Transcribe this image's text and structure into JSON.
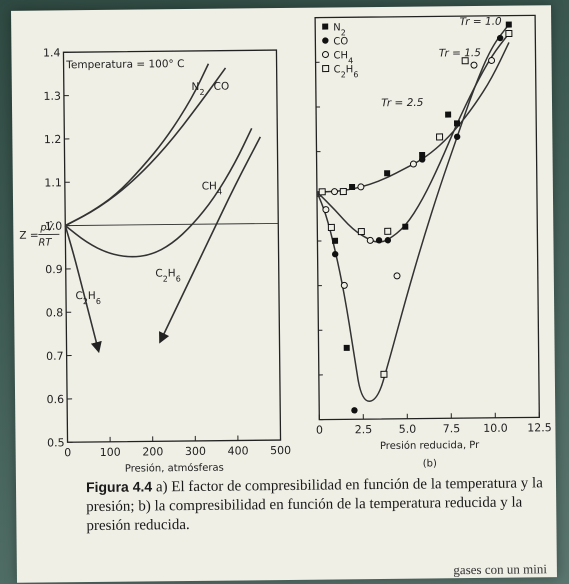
{
  "chart_data": [
    {
      "panel": "(a)",
      "type": "line",
      "title": "Temperatura = 100° C",
      "xlabel": "Presión, atmósferas",
      "ylabel": "Z = pV̂/RT",
      "xlim": [
        0,
        500
      ],
      "ylim": [
        0.5,
        1.4
      ],
      "xticks": [
        "0",
        "100",
        "200",
        "300",
        "400",
        "500"
      ],
      "yticks": [
        "0.5",
        "0.6",
        "0.7",
        "0.8",
        "0.9",
        "1.0",
        "1.1",
        "1.2",
        "1.3",
        "1.4"
      ],
      "ytick_values": [
        0.5,
        0.6,
        0.7,
        0.8,
        0.9,
        1.0,
        1.1,
        1.2,
        1.3,
        1.4
      ],
      "xtick_values": [
        0,
        100,
        200,
        300,
        400,
        500
      ],
      "reference_line_y": 1.0,
      "series": [
        {
          "name": "N2",
          "x": [
            0,
            60,
            120,
            180,
            240,
            300,
            340
          ],
          "y": [
            1.0,
            1.03,
            1.07,
            1.13,
            1.2,
            1.29,
            1.37
          ]
        },
        {
          "name": "CO",
          "x": [
            0,
            80,
            160,
            240,
            320,
            380
          ],
          "y": [
            1.0,
            1.04,
            1.1,
            1.18,
            1.28,
            1.36
          ]
        },
        {
          "name": "CH4",
          "x": [
            0,
            50,
            100,
            150,
            200,
            250,
            300,
            350,
            400,
            440
          ],
          "y": [
            1.0,
            0.96,
            0.935,
            0.925,
            0.93,
            0.955,
            1.0,
            1.06,
            1.14,
            1.22
          ]
        },
        {
          "name": "C2H6",
          "x": [
            0,
            20,
            40,
            60,
            75
          ],
          "y": [
            1.0,
            0.93,
            0.85,
            0.77,
            0.71
          ],
          "arrow": true
        },
        {
          "name": "C2H6",
          "x": [
            460,
            400,
            340,
            280,
            220
          ],
          "y": [
            1.2,
            1.09,
            0.97,
            0.85,
            0.73
          ],
          "arrow": true
        }
      ],
      "annotations": [
        {
          "text": "N2",
          "x": 315,
          "y": 1.31
        },
        {
          "text": "CO",
          "x": 370,
          "y": 1.31
        },
        {
          "text": "CH4",
          "x": 345,
          "y": 1.08
        },
        {
          "text": "C2H6",
          "x": 52,
          "y": 0.83
        },
        {
          "text": "C2H6",
          "x": 240,
          "y": 0.88
        }
      ]
    },
    {
      "panel": "(b)",
      "type": "scatter",
      "xlabel": "Presión reducida, Pr",
      "xlim": [
        0,
        12.5
      ],
      "ylim": [
        0.5,
        1.4
      ],
      "xticks": [
        "0",
        "2.5",
        "5.0",
        "7.5",
        "10.0",
        "12.5"
      ],
      "xtick_values": [
        0,
        2.5,
        5.0,
        7.5,
        10.0,
        12.5
      ],
      "legend": {
        "placement": "top-left",
        "entries": [
          "N2",
          "CO",
          "CH4",
          "C2H6"
        ]
      },
      "curves": [
        {
          "label": "Tr = 2.5",
          "x": [
            0,
            1,
            2,
            3,
            4,
            5,
            6,
            7,
            8,
            9,
            10,
            11
          ],
          "y": [
            1.01,
            1.01,
            1.015,
            1.025,
            1.04,
            1.06,
            1.08,
            1.11,
            1.15,
            1.2,
            1.26,
            1.34
          ]
        },
        {
          "label": "Tr = 1.5",
          "x": [
            0,
            1,
            2,
            3,
            3.5,
            4,
            5,
            6,
            7,
            8,
            9,
            10,
            11
          ],
          "y": [
            1.01,
            0.97,
            0.925,
            0.9,
            0.895,
            0.9,
            0.93,
            0.99,
            1.07,
            1.16,
            1.24,
            1.31,
            1.36
          ]
        },
        {
          "label": "Tr = 1.0",
          "x": [
            0,
            0.5,
            1,
            1.5,
            2,
            2.4,
            3.3,
            4,
            5,
            6,
            7,
            8,
            9,
            10,
            11
          ],
          "y": [
            1.01,
            0.96,
            0.88,
            0.78,
            0.65,
            0.54,
            0.54,
            0.63,
            0.77,
            0.9,
            1.02,
            1.13,
            1.24,
            1.33,
            1.38
          ]
        }
      ],
      "points": [
        {
          "series": "N2",
          "x": 2.0,
          "y": 1.02
        },
        {
          "series": "N2",
          "x": 4.0,
          "y": 1.05
        },
        {
          "series": "N2",
          "x": 6.0,
          "y": 1.09
        },
        {
          "series": "N2",
          "x": 8.0,
          "y": 1.16
        },
        {
          "series": "N2",
          "x": 11.0,
          "y": 1.38
        },
        {
          "series": "N2",
          "x": 5.0,
          "y": 0.93
        },
        {
          "series": "N2",
          "x": 7.5,
          "y": 1.18
        },
        {
          "series": "N2",
          "x": 1.0,
          "y": 0.9
        },
        {
          "series": "N2",
          "x": 1.6,
          "y": 0.66
        },
        {
          "series": "CO",
          "x": 1.0,
          "y": 0.87
        },
        {
          "series": "CO",
          "x": 2.0,
          "y": 0.52
        },
        {
          "series": "CO",
          "x": 4.0,
          "y": 0.9
        },
        {
          "series": "CO",
          "x": 6.0,
          "y": 1.08
        },
        {
          "series": "CO",
          "x": 7.0,
          "y": 1.13
        },
        {
          "series": "CO",
          "x": 8.0,
          "y": 1.13
        },
        {
          "series": "CO",
          "x": 10.5,
          "y": 1.35
        },
        {
          "series": "CO",
          "x": 3.5,
          "y": 0.9
        },
        {
          "series": "CH4",
          "x": 0.5,
          "y": 0.97
        },
        {
          "series": "CH4",
          "x": 1.0,
          "y": 1.01
        },
        {
          "series": "CH4",
          "x": 2.5,
          "y": 1.02
        },
        {
          "series": "CH4",
          "x": 3.0,
          "y": 0.9
        },
        {
          "series": "CH4",
          "x": 4.5,
          "y": 0.82
        },
        {
          "series": "CH4",
          "x": 5.5,
          "y": 1.07
        },
        {
          "series": "CH4",
          "x": 9.0,
          "y": 1.29
        },
        {
          "series": "CH4",
          "x": 10.0,
          "y": 1.3
        },
        {
          "series": "CH4",
          "x": 1.5,
          "y": 0.8
        },
        {
          "series": "C2H6",
          "x": 0.3,
          "y": 1.01
        },
        {
          "series": "C2H6",
          "x": 1.5,
          "y": 1.01
        },
        {
          "series": "C2H6",
          "x": 2.5,
          "y": 0.92
        },
        {
          "series": "C2H6",
          "x": 3.7,
          "y": 0.6
        },
        {
          "series": "C2H6",
          "x": 4.0,
          "y": 0.92
        },
        {
          "series": "C2H6",
          "x": 7.0,
          "y": 1.13
        },
        {
          "series": "C2H6",
          "x": 8.5,
          "y": 1.3
        },
        {
          "series": "C2H6",
          "x": 11.0,
          "y": 1.36
        },
        {
          "series": "C2H6",
          "x": 0.8,
          "y": 0.93
        }
      ],
      "annotations": [
        {
          "text": "Tr = 1.0",
          "x": 10.6,
          "y": 1.38
        },
        {
          "text": "Tr = 1.5",
          "x": 9.4,
          "y": 1.31
        },
        {
          "text": "Tr = 2.5",
          "x": 6.1,
          "y": 1.2
        }
      ]
    }
  ],
  "panel_labels": {
    "a": "(a)",
    "b": "(b)"
  },
  "caption": {
    "label": "Figura 4.4",
    "text": " a) El factor de compresibilidad en función de la temperatura y la presión; b) la compresibilidad en función de la temperatura reducida y la presión reducida."
  },
  "footer_text": "gases con un mini"
}
